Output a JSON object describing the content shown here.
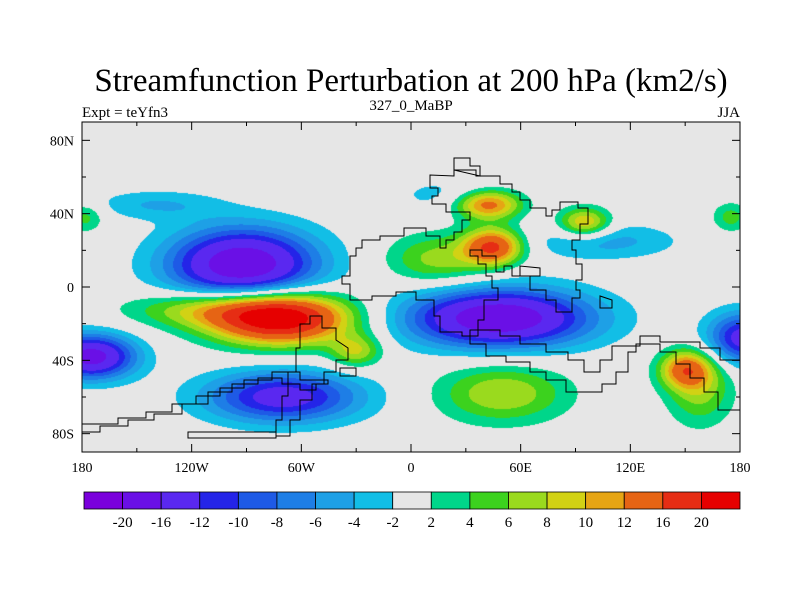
{
  "chart_data": {
    "type": "heatmap",
    "title": "Streamfunction Perturbation at 200 hPa (km2/s)",
    "left_subtitle": "Expt = teYfn3",
    "center_subtitle": "327_0_MaBP",
    "right_subtitle": "JJA",
    "x_axis": {
      "range": [
        -180,
        180
      ],
      "ticks": [
        {
          "value": -180,
          "label": "180"
        },
        {
          "value": -120,
          "label": "120W"
        },
        {
          "value": -60,
          "label": "60W"
        },
        {
          "value": 0,
          "label": "0"
        },
        {
          "value": 60,
          "label": "60E"
        },
        {
          "value": 120,
          "label": "120E"
        },
        {
          "value": 180,
          "label": "180"
        }
      ]
    },
    "y_axis": {
      "range": [
        -90,
        90
      ],
      "ticks": [
        {
          "value": 80,
          "label": "80N"
        },
        {
          "value": 40,
          "label": "40N"
        },
        {
          "value": 0,
          "label": "0"
        },
        {
          "value": -40,
          "label": "40S"
        },
        {
          "value": -80,
          "label": "80S"
        }
      ]
    },
    "levels": [
      -20,
      -16,
      -12,
      -10,
      -8,
      -6,
      -4,
      -2,
      2,
      4,
      6,
      8,
      10,
      12,
      16,
      20
    ],
    "colors": [
      "#7a00dc",
      "#6a10e6",
      "#5a28f0",
      "#2424e8",
      "#1e5ae6",
      "#1e7ee6",
      "#1ea0e6",
      "#12bee6",
      "#e6e6e6",
      "#00d68a",
      "#3cd21e",
      "#9ada1e",
      "#d2d214",
      "#e6a514",
      "#e66414",
      "#e62d14",
      "#e60000"
    ],
    "fields": [
      {
        "lon": -92,
        "lat": 12,
        "rlon": 40,
        "rlat": 20,
        "value": -20
      },
      {
        "lon": 48,
        "lat": -17,
        "rlon": 50,
        "rlat": 16,
        "value": -20
      },
      {
        "lon": -70,
        "lat": -60,
        "rlon": 42,
        "rlat": 14,
        "value": -14
      },
      {
        "lon": -175,
        "lat": -38,
        "rlon": 24,
        "rlat": 12,
        "value": -18
      },
      {
        "lon": 182,
        "lat": -28,
        "rlon": 20,
        "rlat": 14,
        "value": -14
      },
      {
        "lon": 105,
        "lat": 25,
        "rlon": 40,
        "rlat": 10,
        "value": -5
      },
      {
        "lon": -140,
        "lat": 45,
        "rlon": 35,
        "rlat": 8,
        "value": -4
      },
      {
        "lon": 20,
        "lat": 50,
        "rlon": 30,
        "rlat": 10,
        "value": -3
      },
      {
        "lon": -72,
        "lat": -17,
        "rlon": 38,
        "rlat": 14,
        "value": 24
      },
      {
        "lon": -112,
        "lat": -12,
        "rlon": 42,
        "rlat": 10,
        "value": 8
      },
      {
        "lon": -30,
        "lat": -35,
        "rlon": 14,
        "rlat": 9,
        "value": 8
      },
      {
        "lon": 45,
        "lat": 22,
        "rlon": 16,
        "rlat": 10,
        "value": 16
      },
      {
        "lon": 15,
        "lat": 15,
        "rlon": 28,
        "rlat": 14,
        "value": 7
      },
      {
        "lon": 42,
        "lat": 45,
        "rlon": 18,
        "rlat": 8,
        "value": 14
      },
      {
        "lon": 95,
        "lat": 35,
        "rlon": 14,
        "rlat": 8,
        "value": 11
      },
      {
        "lon": 50,
        "lat": -58,
        "rlon": 35,
        "rlat": 16,
        "value": 8
      },
      {
        "lon": 150,
        "lat": -45,
        "rlon": 14,
        "rlat": 10,
        "value": 12
      },
      {
        "lon": 158,
        "lat": -55,
        "rlon": 18,
        "rlat": 20,
        "value": 7
      },
      {
        "lon": -178,
        "lat": 38,
        "rlon": 10,
        "rlat": 8,
        "value": 5
      },
      {
        "lon": 175,
        "lat": 38,
        "rlon": 10,
        "rlat": 8,
        "value": 5
      }
    ]
  }
}
